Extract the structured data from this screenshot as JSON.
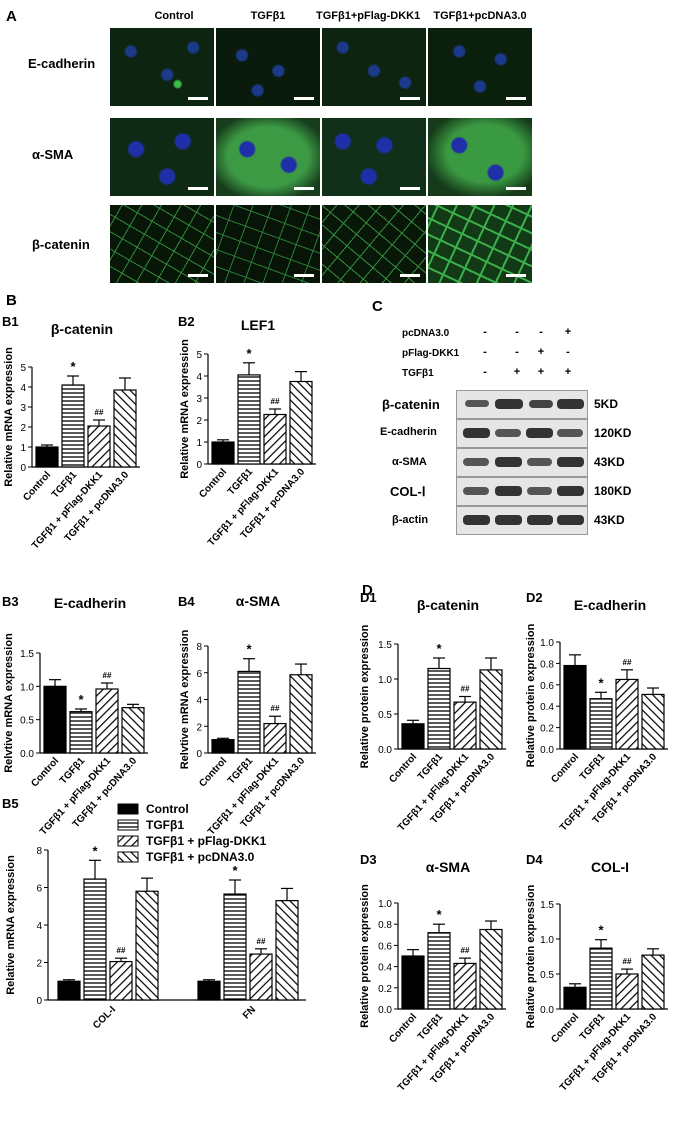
{
  "panel_A": {
    "letter": "A",
    "columns": [
      "Control",
      "TGFβ1",
      "TGFβ1+pFlag-DKK1",
      "TGFβ1+pcDNA3.0"
    ],
    "rows": [
      "E-cadherin",
      "α-SMA",
      "β-catenin"
    ]
  },
  "panel_B": {
    "letter": "B"
  },
  "panel_C": {
    "letter": "C",
    "treatments": [
      {
        "label": "pcDNA3.0",
        "signs": [
          "-",
          "-",
          "-",
          "+"
        ]
      },
      {
        "label": "pFlag-DKK1",
        "signs": [
          "-",
          "-",
          "+",
          "-"
        ]
      },
      {
        "label": "TGFβ1",
        "signs": [
          "-",
          "+",
          "+",
          "+"
        ]
      }
    ],
    "blots": [
      {
        "protein": "β-catenin",
        "kd": "5KD"
      },
      {
        "protein": "E-cadherin",
        "kd": "120KD"
      },
      {
        "protein": "α-SMA",
        "kd": "43KD"
      },
      {
        "protein": "COL-Ⅰ",
        "kd": "180KD"
      },
      {
        "protein": "β-actin",
        "kd": "43KD"
      }
    ]
  },
  "panel_D": {
    "letter": "D"
  },
  "colors": {
    "black_bar": "#000000",
    "bar_outline": "#000000",
    "if_green": "#2f8a3a",
    "if_blue": "#1e2fa8"
  },
  "chart_data": [
    {
      "id": "B1",
      "type": "bar",
      "panel": "B1",
      "title": "β-catenin",
      "ylabel": "Relative mRNA expression",
      "ylim": [
        0,
        5
      ],
      "yticks": [
        0,
        1,
        2,
        3,
        4,
        5
      ],
      "categories": [
        "Control",
        "TGFβ1",
        "TGFβ1 + pFlag-DKK1",
        "TGFβ1 + pcDNA3.0"
      ],
      "values": [
        1.0,
        4.1,
        2.05,
        3.85
      ],
      "errors": [
        0.1,
        0.45,
        0.3,
        0.6
      ],
      "annotations": [
        "",
        "*",
        "##",
        ""
      ]
    },
    {
      "id": "B2",
      "type": "bar",
      "panel": "B2",
      "title": "LEF1",
      "ylabel": "Relative mRNA expression",
      "ylim": [
        0,
        5
      ],
      "yticks": [
        0,
        1,
        2,
        3,
        4,
        5
      ],
      "categories": [
        "Control",
        "TGFβ1",
        "TGFβ1 + pFlag-DKK1",
        "TGFβ1 + pcDNA3.0"
      ],
      "values": [
        1.0,
        4.05,
        2.25,
        3.75
      ],
      "errors": [
        0.1,
        0.55,
        0.25,
        0.45
      ],
      "annotations": [
        "",
        "*",
        "##",
        ""
      ]
    },
    {
      "id": "B3",
      "type": "bar",
      "panel": "B3",
      "title": "E-cadherin",
      "ylabel": "Relvtive mRNA expression",
      "ylim": [
        0,
        1.5
      ],
      "yticks": [
        "0.0",
        "0.5",
        "1.0",
        "1.5"
      ],
      "categories": [
        "Control",
        "TGFβ1",
        "TGFβ1 + pFlag-DKK1",
        "TGFβ1 + pcDNA3.0"
      ],
      "values": [
        1.0,
        0.62,
        0.96,
        0.68
      ],
      "errors": [
        0.1,
        0.04,
        0.09,
        0.05
      ],
      "annotations": [
        "",
        "*",
        "##",
        ""
      ]
    },
    {
      "id": "B4",
      "type": "bar",
      "panel": "B4",
      "title": "α-SMA",
      "ylabel": "Relvtive mRNA expression",
      "ylim": [
        0,
        8
      ],
      "yticks": [
        0,
        2,
        4,
        6,
        8
      ],
      "categories": [
        "Control",
        "TGFβ1",
        "TGFβ1 + pFlag-DKK1",
        "TGFβ1 + pcDNA3.0"
      ],
      "values": [
        1.0,
        6.1,
        2.2,
        5.85
      ],
      "errors": [
        0.1,
        0.95,
        0.55,
        0.8
      ],
      "annotations": [
        "",
        "*",
        "##",
        ""
      ]
    },
    {
      "id": "B5",
      "type": "bar",
      "panel": "B5",
      "ylabel": "Relative mRNA expression",
      "ylim": [
        0,
        8
      ],
      "yticks": [
        0,
        2,
        4,
        6,
        8
      ],
      "categories": [
        "COL-I",
        "FN"
      ],
      "series": [
        {
          "name": "Control",
          "values": [
            1.0,
            1.0
          ],
          "errors": [
            0.08,
            0.08
          ]
        },
        {
          "name": "TGFβ1",
          "values": [
            6.45,
            5.65
          ],
          "errors": [
            1.0,
            0.75
          ]
        },
        {
          "name": "TGFβ1 + pFlag-DKK1",
          "values": [
            2.05,
            2.45
          ],
          "errors": [
            0.18,
            0.28
          ]
        },
        {
          "name": "TGFβ1 + pcDNA3.0",
          "values": [
            5.8,
            5.3
          ],
          "errors": [
            0.7,
            0.65
          ]
        }
      ],
      "annotations": [
        [
          "",
          "*",
          "##",
          ""
        ],
        [
          "",
          "*",
          "##",
          ""
        ]
      ],
      "legend": "top"
    },
    {
      "id": "D1",
      "type": "bar",
      "panel": "D1",
      "title": "β-catenin",
      "ylabel": "Relative protein expression",
      "ylim": [
        0,
        1.5
      ],
      "yticks": [
        "0.0",
        "0.5",
        "1.0",
        "1.5"
      ],
      "categories": [
        "Control",
        "TGFβ1",
        "TGFβ1 + pFlag-DKK1",
        "TGFβ1 + pcDNA3.0"
      ],
      "values": [
        0.36,
        1.15,
        0.67,
        1.13
      ],
      "errors": [
        0.05,
        0.15,
        0.08,
        0.17
      ],
      "annotations": [
        "",
        "*",
        "##",
        ""
      ]
    },
    {
      "id": "D2",
      "type": "bar",
      "panel": "D2",
      "title": "E-cadherin",
      "ylabel": "Relative protein expression",
      "ylim": [
        0,
        1.0
      ],
      "yticks": [
        "0.0",
        "0.2",
        "0.4",
        "0.6",
        "0.8",
        "1.0"
      ],
      "categories": [
        "Control",
        "TGFβ1",
        "TGFβ1 + pFlag-DKK1",
        "TGFβ1 + pcDNA3.0"
      ],
      "values": [
        0.78,
        0.47,
        0.65,
        0.51
      ],
      "errors": [
        0.1,
        0.06,
        0.09,
        0.06
      ],
      "annotations": [
        "",
        "*",
        "##",
        ""
      ]
    },
    {
      "id": "D3",
      "type": "bar",
      "panel": "D3",
      "title": "α-SMA",
      "ylabel": "Relative protein expression",
      "ylim": [
        0,
        1.0
      ],
      "yticks": [
        "0.0",
        "0.2",
        "0.4",
        "0.6",
        "0.8",
        "1.0"
      ],
      "categories": [
        "Control",
        "TGFβ1",
        "TGFβ1 + pFlag-DKK1",
        "TGFβ1 + pcDNA3.0"
      ],
      "values": [
        0.5,
        0.72,
        0.43,
        0.75
      ],
      "errors": [
        0.06,
        0.08,
        0.05,
        0.08
      ],
      "annotations": [
        "",
        "*",
        "##",
        ""
      ]
    },
    {
      "id": "D4",
      "type": "bar",
      "panel": "D4",
      "title": "COL-I",
      "ylabel": "Relative protein expression",
      "ylim": [
        0,
        1.5
      ],
      "yticks": [
        "0.0",
        "0.5",
        "1.0",
        "1.5"
      ],
      "categories": [
        "Control",
        "TGFβ1",
        "TGFβ1 + pFlag-DKK1",
        "TGFβ1 + pcDNA3.0"
      ],
      "values": [
        0.31,
        0.87,
        0.5,
        0.77
      ],
      "errors": [
        0.05,
        0.12,
        0.07,
        0.09
      ],
      "annotations": [
        "",
        "*",
        "##",
        ""
      ]
    }
  ]
}
